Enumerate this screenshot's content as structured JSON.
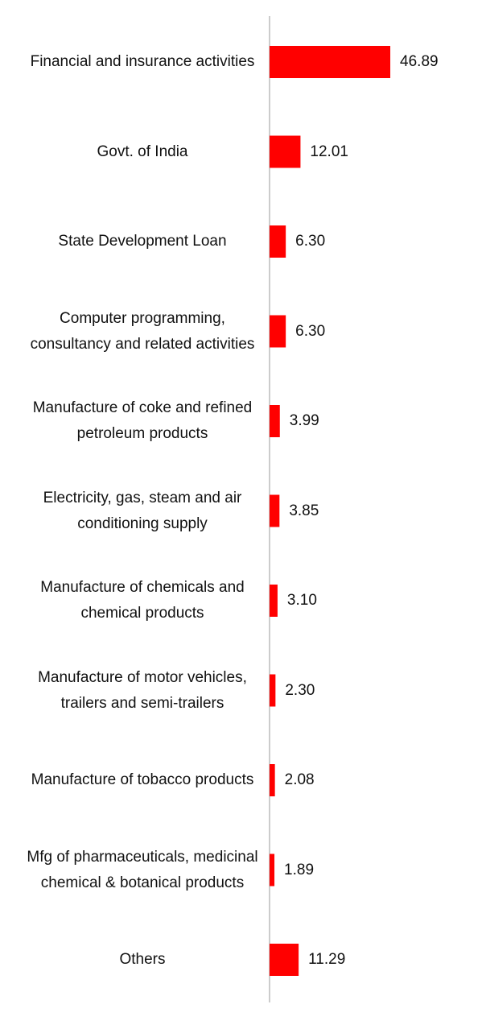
{
  "chart_data": {
    "type": "bar",
    "orientation": "horizontal",
    "categories": [
      "Financial and insurance activities",
      "Govt. of India",
      "State Development Loan",
      "Computer programming, consultancy and related activities",
      "Manufacture of coke and refined petroleum products",
      "Electricity, gas, steam and air conditioning supply",
      "Manufacture of chemicals and chemical products",
      "Manufacture of motor vehicles, trailers and semi-trailers",
      "Manufacture of tobacco products",
      "Mfg of pharmaceuticals, medicinal chemical & botanical products",
      "Others"
    ],
    "values": [
      46.89,
      12.01,
      6.3,
      6.3,
      3.99,
      3.85,
      3.1,
      2.3,
      2.08,
      1.89,
      11.29
    ],
    "value_labels": [
      "46.89",
      "12.01",
      "6.30",
      "6.30",
      "3.99",
      "3.85",
      "3.10",
      "2.30",
      "2.08",
      "1.89",
      "11.29"
    ],
    "color": "#ff0000",
    "xlim": [
      0,
      80
    ]
  }
}
